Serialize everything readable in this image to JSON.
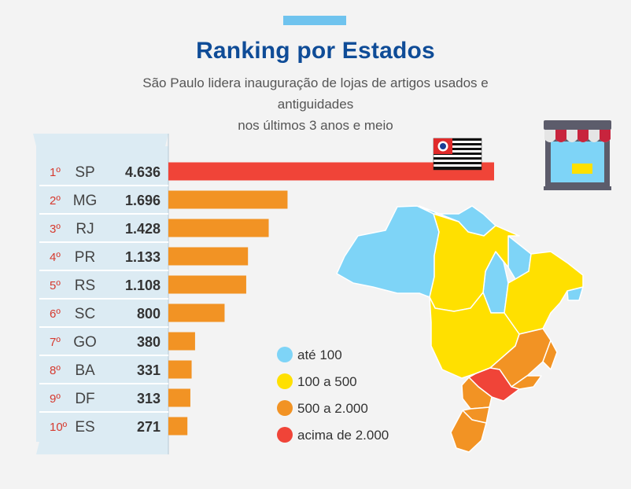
{
  "header": {
    "title": "Ranking por Estados",
    "subtitle_line1": "São Paulo lidera inauguração de lojas de artigos usados e antiguidades",
    "subtitle_line2": "nos últimos 3 anos e meio"
  },
  "chart_data": {
    "type": "bar",
    "orientation": "horizontal",
    "title": "Ranking por Estados",
    "categories": [
      "SP",
      "MG",
      "RJ",
      "PR",
      "RS",
      "SC",
      "GO",
      "BA",
      "DF",
      "ES"
    ],
    "ranks": [
      "1º",
      "2º",
      "3º",
      "4º",
      "5º",
      "6º",
      "7º",
      "8º",
      "9º",
      "10º"
    ],
    "values": [
      4636,
      1696,
      1428,
      1133,
      1108,
      800,
      380,
      331,
      313,
      271
    ],
    "value_labels": [
      "4.636",
      "1.696",
      "1.428",
      "1.133",
      "1.108",
      "800",
      "380",
      "331",
      "313",
      "271"
    ],
    "bar_colors": [
      "#f04438",
      "#f29324",
      "#f29324",
      "#f29324",
      "#f29324",
      "#f29324",
      "#f29324",
      "#f29324",
      "#f29324",
      "#f29324"
    ],
    "xlim": [
      0,
      4636
    ],
    "legend": [
      {
        "label": "até 100",
        "color": "#7ed4f7"
      },
      {
        "label": "100 a 500",
        "color": "#ffe000"
      },
      {
        "label": "500 a 2.000",
        "color": "#f29324"
      },
      {
        "label": "acima de 2.000",
        "color": "#f04438"
      }
    ]
  },
  "icons": {
    "flag": "sao-paulo-flag-icon",
    "store": "store-icon",
    "map": "brazil-map"
  }
}
